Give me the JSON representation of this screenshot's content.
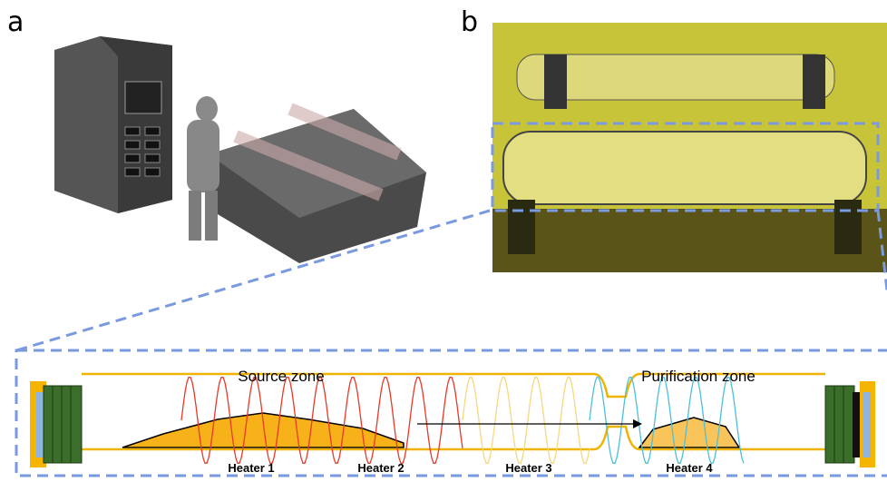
{
  "panels": [
    {
      "label": "a"
    },
    {
      "label": "b"
    }
  ],
  "diagram": {
    "zones": [
      "Source zone",
      "Purification zone"
    ],
    "heaters": [
      "Heater 1",
      "Heater 2",
      "Heater 3",
      "Heater 4"
    ]
  }
}
